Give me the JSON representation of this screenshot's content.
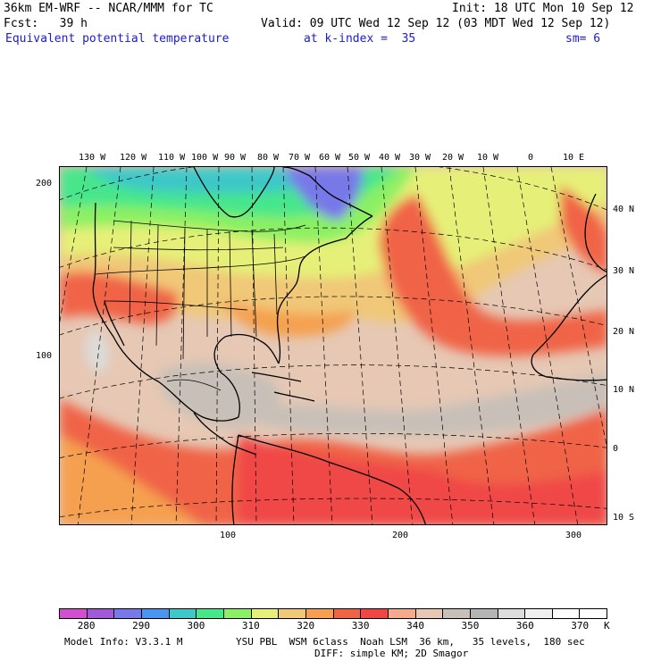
{
  "header": {
    "line1_left": "36km EM-WRF -- NCAR/MMM for TC",
    "line1_right": "Init: 18 UTC Mon 10 Sep 12",
    "line2_left": "Fcst:   39 h",
    "line2_right": "Valid: 09 UTC Wed 12 Sep 12 (03 MDT Wed 12 Sep 12)",
    "field_name": "Equivalent potential temperature",
    "level": "at k-index =  35",
    "smoothing": "sm= 6"
  },
  "top_longitudes": [
    "130 W",
    "120 W",
    "110 W",
    "100 W",
    "90 W",
    "80 W",
    "70 W",
    "60 W",
    "50 W",
    "40 W",
    "30 W",
    "20 W",
    "10 W",
    "0",
    "10 E"
  ],
  "right_latitudes": [
    "40 N",
    "30 N",
    "20 N",
    "10 N",
    "0",
    "10 S"
  ],
  "left_ticks": [
    "200",
    "100"
  ],
  "bottom_ticks": [
    "100",
    "200",
    "300"
  ],
  "colorbar": {
    "labels": [
      "280",
      "290",
      "300",
      "310",
      "320",
      "330",
      "340",
      "350",
      "360",
      "370"
    ],
    "units": "K",
    "colors": [
      "#d24fd2",
      "#a05ad8",
      "#7878e8",
      "#4a96ee",
      "#3ec8c8",
      "#46e68c",
      "#8cf064",
      "#e6f078",
      "#f0c878",
      "#f5a050",
      "#f06446",
      "#f04646",
      "#f5aa8c",
      "#e6c8b4",
      "#c8c0b8",
      "#b4b4b4",
      "#dcdcdc",
      "#f0f0f0",
      "#ffffff",
      "#ffffff"
    ]
  },
  "footer": {
    "model_info": "Model Info: V3.3.1 M",
    "physics": "YSU PBL  WSM 6class  Noah LSM  36 km,   35 levels,  180 sec",
    "diffusion": "DIFF: simple KM; 2D Smagor"
  }
}
